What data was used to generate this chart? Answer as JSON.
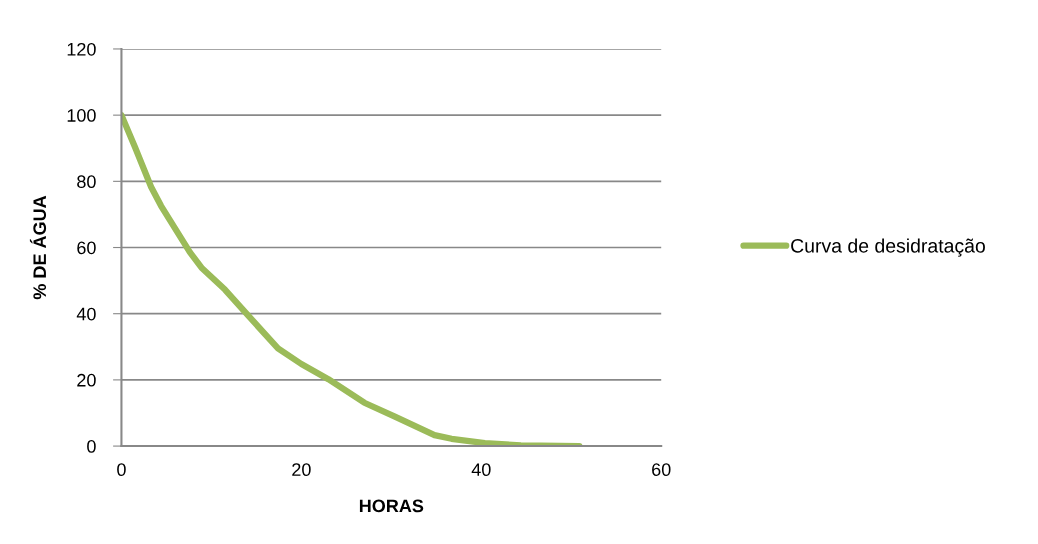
{
  "chart_data": {
    "type": "line",
    "xlabel": "HORAS",
    "ylabel": "% DE ÁGUA",
    "x": [
      0,
      1.5,
      3.3,
      4.4,
      7.6,
      8.9,
      11.5,
      14.1,
      17.4,
      20,
      23,
      27,
      30.4,
      34.8,
      36.7,
      40.4,
      44.4,
      50.9
    ],
    "series": [
      {
        "name": "Curva de desidratação",
        "color": "#9bbb59",
        "values": [
          100,
          90.4,
          78.3,
          72.6,
          58.6,
          53.9,
          47.3,
          39.4,
          29.5,
          24.8,
          20.2,
          13.1,
          8.9,
          3.3,
          2.2,
          0.9,
          0.2,
          0
        ]
      }
    ],
    "xlim": [
      0,
      60
    ],
    "xticks": [
      0,
      20,
      40,
      60
    ],
    "ylim": [
      0,
      120
    ],
    "yticks": [
      0,
      20,
      40,
      60,
      80,
      100,
      120
    ],
    "grid": "y",
    "legend": "right",
    "marker": "none",
    "line_style": "solid"
  }
}
